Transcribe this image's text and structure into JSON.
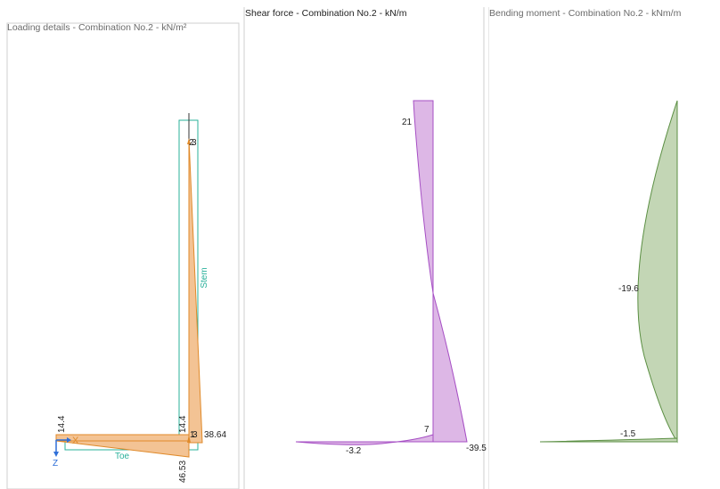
{
  "colors": {
    "load_fill": "#f3c394",
    "load_stroke": "#e08a2a",
    "outline": "#29b09a",
    "shear_fill": "#ddb7e6",
    "shear_stroke": "#a64fc4",
    "moment_fill": "#c3d6b5",
    "moment_stroke": "#5b8f43",
    "axis_blue": "#2f6fd8",
    "panel_border": "#cfcfcf"
  },
  "loading": {
    "title": "Loading details - Combination No.2 - kN/m²",
    "stem_label": "Stem",
    "toe_label": "Toe",
    "labels": {
      "toe_left": "14.4",
      "toe_right": "14.4",
      "bottom_pressure": "46.53",
      "stem_base": "38.64",
      "node_top": "2",
      "node_top2": "3",
      "node_base": "1",
      "node_base2": "3",
      "axis_x": "X",
      "axis_z": "Z"
    }
  },
  "shear": {
    "title": "Shear force - Combination No.2 - kN/m",
    "labels": {
      "top": "21",
      "base": "7",
      "toe": "-3.2",
      "heel": "-39.5"
    }
  },
  "moment": {
    "title": "Bending moment - Combination No.2 - kNm/m",
    "labels": {
      "stem": "-19.6",
      "toe": "-1.5"
    }
  }
}
